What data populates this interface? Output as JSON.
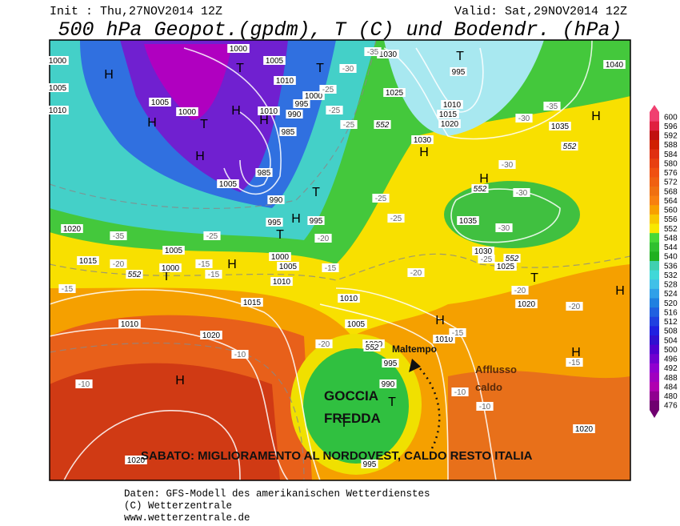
{
  "header": {
    "init": "Init : Thu,27NOV2014 12Z",
    "valid": "Valid: Sat,29NOV2014 12Z",
    "title": "500 hPa Geopot.(gpdm), T (C) und Bodendr. (hPa)"
  },
  "colorbar": {
    "labels": [
      600,
      596,
      592,
      588,
      584,
      580,
      576,
      572,
      568,
      564,
      560,
      556,
      552,
      548,
      544,
      540,
      536,
      532,
      528,
      524,
      520,
      516,
      512,
      508,
      504,
      500,
      496,
      492,
      488,
      484,
      480,
      476
    ],
    "colors": [
      "#f04070",
      "#e02040",
      "#c01010",
      "#d02000",
      "#e03010",
      "#e84010",
      "#f05010",
      "#f06010",
      "#f07010",
      "#f88010",
      "#f8a000",
      "#f8c800",
      "#f8e800",
      "#48d838",
      "#30c030",
      "#20b020",
      "#40d0b0",
      "#40d8d8",
      "#40c0e8",
      "#30a0e8",
      "#2080e0",
      "#2060e0",
      "#2040e0",
      "#2020e0",
      "#3010d0",
      "#5000d0",
      "#7000d0",
      "#9000d0",
      "#a000c0",
      "#b000b0",
      "#900090",
      "#700070"
    ]
  },
  "map": {
    "labels": [
      "H",
      "H",
      "H",
      "H",
      "H",
      "T",
      "T",
      "T",
      "T",
      "H",
      "H",
      "H",
      "T",
      "T",
      "T",
      "H",
      "H",
      "H",
      "H",
      "H",
      "H",
      "T",
      "T",
      "T",
      "1000",
      "1005",
      "1010",
      "1005",
      "1000",
      "1000",
      "1005",
      "1010",
      "1000",
      "995",
      "1010",
      "990",
      "985",
      "985",
      "1005",
      "990",
      "995",
      "995",
      "1020",
      "1015",
      "1000",
      "1005",
      "1000",
      "1005",
      "1010",
      "1015",
      "1010",
      "1020",
      "1010",
      "1005",
      "1000",
      "995",
      "990",
      "995",
      "1020",
      "1010",
      "1020",
      "1020",
      "1030",
      "1025",
      "995",
      "1010",
      "1015",
      "1020",
      "1030",
      "1035",
      "1040",
      "1035",
      "1030",
      "1025",
      "-30",
      "-35",
      "-25",
      "-25",
      "-25",
      "-30",
      "-35",
      "-30",
      "-30",
      "-30",
      "-25",
      "-25",
      "-25",
      "-20",
      "-20",
      "-20",
      "-20",
      "-15",
      "-15",
      "-15",
      "-15",
      "-10",
      "-10",
      "-10",
      "-10",
      "-15",
      "-15",
      "-25",
      "-35",
      "-20",
      "-20",
      "552",
      "552",
      "552",
      "552",
      "552",
      "552"
    ]
  },
  "annotations": {
    "maltempo": "Maltempo",
    "afflusso_1": "Afflusso",
    "afflusso_2": "caldo",
    "goccia_1": "GOCCIA",
    "goccia_2": "FREDDA",
    "sabato": "SABATO: MIGLIORAMENTO AL NORDOVEST, CALDO RESTO ITALIA"
  },
  "footer": [
    "Daten: GFS-Modell des amerikanischen Wetterdienstes",
    "(C) Wetterzentrale",
    "www.wetterzentrale.de"
  ]
}
